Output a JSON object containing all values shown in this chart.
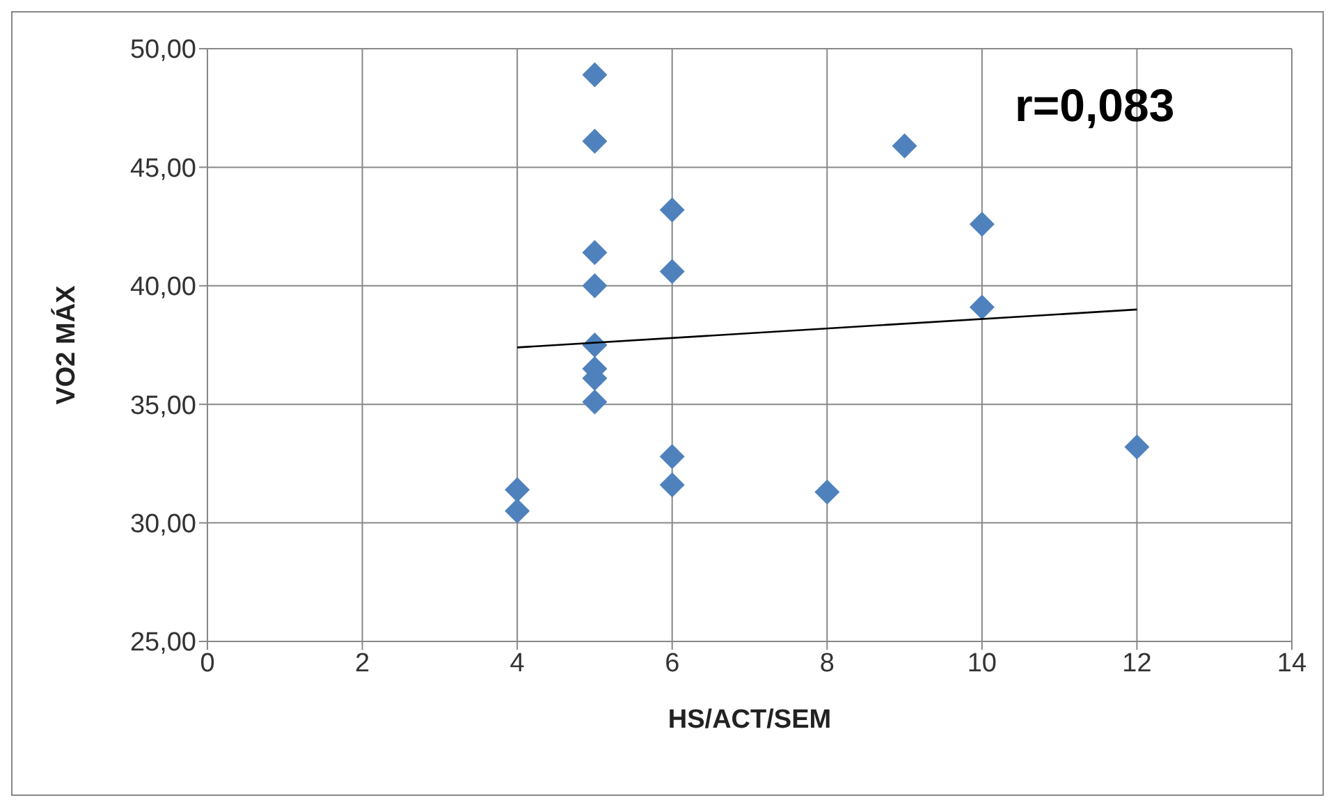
{
  "chart_data": {
    "type": "scatter",
    "xlabel": "HS/ACT/SEM",
    "ylabel": "VO2 MÁX",
    "annotations": [
      "r=0,083"
    ],
    "xlim": [
      0,
      14
    ],
    "xticks": [
      0,
      2,
      4,
      6,
      8,
      10,
      12,
      14
    ],
    "ylim": [
      25,
      50
    ],
    "yticks": [
      {
        "value": 25,
        "label": "25,00"
      },
      {
        "value": 30,
        "label": "30,00"
      },
      {
        "value": 35,
        "label": "35,00"
      },
      {
        "value": 40,
        "label": "40,00"
      },
      {
        "value": 45,
        "label": "45,00"
      },
      {
        "value": 50,
        "label": "50,00"
      }
    ],
    "grid": true,
    "legend": false,
    "marker": "diamond",
    "series": [
      {
        "color": "#4f81bd",
        "x": [
          5,
          5,
          5,
          5,
          5,
          5,
          5,
          5,
          6,
          6,
          6,
          6,
          4,
          4,
          8,
          9,
          10,
          10,
          12
        ],
        "values": [
          48.9,
          46.1,
          41.4,
          40.0,
          37.5,
          36.5,
          36.1,
          35.1,
          43.2,
          40.6,
          32.8,
          31.6,
          31.4,
          30.5,
          31.3,
          45.9,
          42.6,
          39.1,
          33.2
        ]
      },
      {
        "type": "line",
        "color": "#000000",
        "x": [
          4,
          12
        ],
        "values": [
          37.4,
          39.0
        ],
        "marker": "none"
      }
    ]
  }
}
